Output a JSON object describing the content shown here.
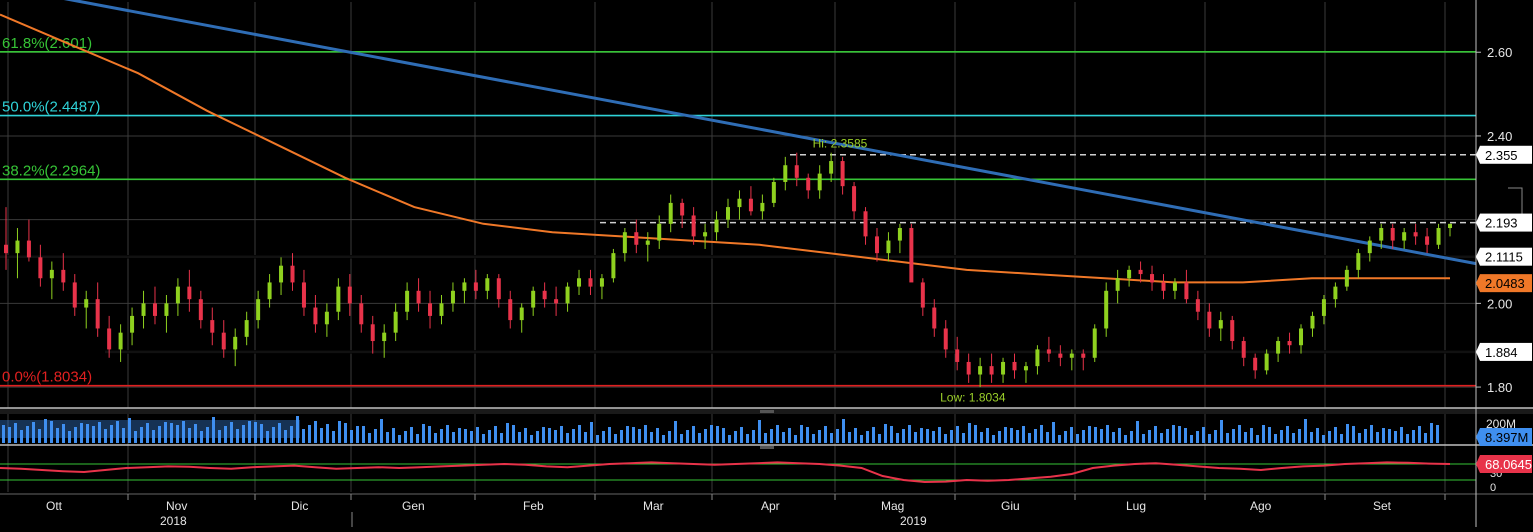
{
  "chart_data": {
    "type": "candlestick",
    "x_axis": {
      "months": [
        "Ott",
        "Nov",
        "Dic",
        "Gen",
        "Feb",
        "Mar",
        "Apr",
        "Mag",
        "Giu",
        "Lug",
        "Ago",
        "Set"
      ],
      "years": [
        "2018",
        "2019"
      ]
    },
    "y_axis": {
      "ticks": [
        "2.60",
        "2.40",
        "2.00",
        "1.80"
      ],
      "ylim": [
        1.75,
        2.72
      ]
    },
    "colors": {
      "bull": "#8fd11f",
      "bear": "#e8334a",
      "ma": "#f07828",
      "trend": "#2f6db5",
      "fib_green": "#36c436",
      "fib_cyan": "#2fd3d8",
      "low_line": "#e02020",
      "grid": "#3a3a3a",
      "volume": "#3f8ff0",
      "rsi": "#e8334a"
    },
    "price": {
      "series": [
        {
          "o": 2.14,
          "h": 2.23,
          "l": 2.08,
          "c": 2.12
        },
        {
          "o": 2.12,
          "h": 2.18,
          "l": 2.06,
          "c": 2.15
        },
        {
          "o": 2.15,
          "h": 2.2,
          "l": 2.1,
          "c": 2.11
        },
        {
          "o": 2.11,
          "h": 2.14,
          "l": 2.04,
          "c": 2.06
        },
        {
          "o": 2.06,
          "h": 2.1,
          "l": 2.01,
          "c": 2.08
        },
        {
          "o": 2.08,
          "h": 2.12,
          "l": 2.03,
          "c": 2.05
        },
        {
          "o": 2.05,
          "h": 2.07,
          "l": 1.97,
          "c": 1.99
        },
        {
          "o": 1.99,
          "h": 2.03,
          "l": 1.94,
          "c": 2.01
        },
        {
          "o": 2.01,
          "h": 2.05,
          "l": 1.92,
          "c": 1.94
        },
        {
          "o": 1.94,
          "h": 1.97,
          "l": 1.87,
          "c": 1.89
        },
        {
          "o": 1.89,
          "h": 1.95,
          "l": 1.86,
          "c": 1.93
        },
        {
          "o": 1.93,
          "h": 1.99,
          "l": 1.9,
          "c": 1.97
        },
        {
          "o": 1.97,
          "h": 2.03,
          "l": 1.94,
          "c": 2.0
        },
        {
          "o": 2.0,
          "h": 2.04,
          "l": 1.95,
          "c": 1.97
        },
        {
          "o": 1.97,
          "h": 2.02,
          "l": 1.93,
          "c": 2.0
        },
        {
          "o": 2.0,
          "h": 2.06,
          "l": 1.97,
          "c": 2.04
        },
        {
          "o": 2.04,
          "h": 2.08,
          "l": 1.98,
          "c": 2.01
        },
        {
          "o": 2.01,
          "h": 2.03,
          "l": 1.94,
          "c": 1.96
        },
        {
          "o": 1.96,
          "h": 1.99,
          "l": 1.9,
          "c": 1.93
        },
        {
          "o": 1.93,
          "h": 1.96,
          "l": 1.87,
          "c": 1.89
        },
        {
          "o": 1.89,
          "h": 1.94,
          "l": 1.85,
          "c": 1.92
        },
        {
          "o": 1.92,
          "h": 1.98,
          "l": 1.9,
          "c": 1.96
        },
        {
          "o": 1.96,
          "h": 2.03,
          "l": 1.94,
          "c": 2.01
        },
        {
          "o": 2.01,
          "h": 2.07,
          "l": 1.99,
          "c": 2.05
        },
        {
          "o": 2.05,
          "h": 2.11,
          "l": 2.02,
          "c": 2.09
        },
        {
          "o": 2.09,
          "h": 2.12,
          "l": 2.03,
          "c": 2.05
        },
        {
          "o": 2.05,
          "h": 2.08,
          "l": 1.97,
          "c": 1.99
        },
        {
          "o": 1.99,
          "h": 2.02,
          "l": 1.93,
          "c": 1.95
        },
        {
          "o": 1.95,
          "h": 2.0,
          "l": 1.92,
          "c": 1.98
        },
        {
          "o": 1.98,
          "h": 2.06,
          "l": 1.96,
          "c": 2.04
        },
        {
          "o": 2.04,
          "h": 2.07,
          "l": 1.97,
          "c": 2.0
        },
        {
          "o": 2.0,
          "h": 2.02,
          "l": 1.93,
          "c": 1.95
        },
        {
          "o": 1.95,
          "h": 1.97,
          "l": 1.88,
          "c": 1.91
        },
        {
          "o": 1.91,
          "h": 1.95,
          "l": 1.87,
          "c": 1.93
        },
        {
          "o": 1.93,
          "h": 2.0,
          "l": 1.91,
          "c": 1.98
        },
        {
          "o": 1.98,
          "h": 2.05,
          "l": 1.96,
          "c": 2.03
        },
        {
          "o": 2.03,
          "h": 2.06,
          "l": 1.98,
          "c": 2.0
        },
        {
          "o": 2.0,
          "h": 2.03,
          "l": 1.94,
          "c": 1.97
        },
        {
          "o": 1.97,
          "h": 2.02,
          "l": 1.95,
          "c": 2.0
        },
        {
          "o": 2.0,
          "h": 2.05,
          "l": 1.98,
          "c": 2.03
        },
        {
          "o": 2.03,
          "h": 2.06,
          "l": 2.0,
          "c": 2.05
        },
        {
          "o": 2.05,
          "h": 2.08,
          "l": 2.01,
          "c": 2.03
        },
        {
          "o": 2.03,
          "h": 2.07,
          "l": 2.01,
          "c": 2.06
        },
        {
          "o": 2.06,
          "h": 2.07,
          "l": 1.99,
          "c": 2.01
        },
        {
          "o": 2.01,
          "h": 2.03,
          "l": 1.94,
          "c": 1.96
        },
        {
          "o": 1.96,
          "h": 2.0,
          "l": 1.93,
          "c": 1.99
        },
        {
          "o": 1.99,
          "h": 2.04,
          "l": 1.97,
          "c": 2.03
        },
        {
          "o": 2.03,
          "h": 2.05,
          "l": 1.99,
          "c": 2.01
        },
        {
          "o": 2.01,
          "h": 2.04,
          "l": 1.97,
          "c": 2.0
        },
        {
          "o": 2.0,
          "h": 2.05,
          "l": 1.98,
          "c": 2.04
        },
        {
          "o": 2.04,
          "h": 2.08,
          "l": 2.02,
          "c": 2.06
        },
        {
          "o": 2.06,
          "h": 2.08,
          "l": 2.02,
          "c": 2.04
        },
        {
          "o": 2.04,
          "h": 2.07,
          "l": 2.01,
          "c": 2.06
        },
        {
          "o": 2.06,
          "h": 2.13,
          "l": 2.05,
          "c": 2.12
        },
        {
          "o": 2.12,
          "h": 2.18,
          "l": 2.1,
          "c": 2.17
        },
        {
          "o": 2.17,
          "h": 2.2,
          "l": 2.12,
          "c": 2.14
        },
        {
          "o": 2.14,
          "h": 2.17,
          "l": 2.1,
          "c": 2.15
        },
        {
          "o": 2.15,
          "h": 2.21,
          "l": 2.13,
          "c": 2.19
        },
        {
          "o": 2.19,
          "h": 2.26,
          "l": 2.17,
          "c": 2.24
        },
        {
          "o": 2.24,
          "h": 2.25,
          "l": 2.18,
          "c": 2.21
        },
        {
          "o": 2.21,
          "h": 2.23,
          "l": 2.14,
          "c": 2.16
        },
        {
          "o": 2.16,
          "h": 2.19,
          "l": 2.13,
          "c": 2.17
        },
        {
          "o": 2.17,
          "h": 2.22,
          "l": 2.15,
          "c": 2.2
        },
        {
          "o": 2.2,
          "h": 2.25,
          "l": 2.18,
          "c": 2.23
        },
        {
          "o": 2.23,
          "h": 2.27,
          "l": 2.2,
          "c": 2.25
        },
        {
          "o": 2.25,
          "h": 2.28,
          "l": 2.21,
          "c": 2.22
        },
        {
          "o": 2.22,
          "h": 2.26,
          "l": 2.2,
          "c": 2.24
        },
        {
          "o": 2.24,
          "h": 2.3,
          "l": 2.23,
          "c": 2.29
        },
        {
          "o": 2.29,
          "h": 2.35,
          "l": 2.27,
          "c": 2.33
        },
        {
          "o": 2.33,
          "h": 2.36,
          "l": 2.28,
          "c": 2.3
        },
        {
          "o": 2.3,
          "h": 2.31,
          "l": 2.25,
          "c": 2.27
        },
        {
          "o": 2.27,
          "h": 2.33,
          "l": 2.25,
          "c": 2.31
        },
        {
          "o": 2.31,
          "h": 2.36,
          "l": 2.29,
          "c": 2.34
        },
        {
          "o": 2.34,
          "h": 2.35,
          "l": 2.26,
          "c": 2.28
        },
        {
          "o": 2.28,
          "h": 2.29,
          "l": 2.2,
          "c": 2.22
        },
        {
          "o": 2.22,
          "h": 2.23,
          "l": 2.14,
          "c": 2.16
        },
        {
          "o": 2.16,
          "h": 2.18,
          "l": 2.1,
          "c": 2.12
        },
        {
          "o": 2.12,
          "h": 2.17,
          "l": 2.1,
          "c": 2.15
        },
        {
          "o": 2.15,
          "h": 2.19,
          "l": 2.12,
          "c": 2.18
        },
        {
          "o": 2.18,
          "h": 2.19,
          "l": 2.08,
          "c": 2.05
        },
        {
          "o": 2.05,
          "h": 2.06,
          "l": 1.97,
          "c": 1.99
        },
        {
          "o": 1.99,
          "h": 2.01,
          "l": 1.92,
          "c": 1.94
        },
        {
          "o": 1.94,
          "h": 1.96,
          "l": 1.87,
          "c": 1.89
        },
        {
          "o": 1.89,
          "h": 1.92,
          "l": 1.84,
          "c": 1.86
        },
        {
          "o": 1.86,
          "h": 1.88,
          "l": 1.81,
          "c": 1.83
        },
        {
          "o": 1.83,
          "h": 1.87,
          "l": 1.8,
          "c": 1.85
        },
        {
          "o": 1.85,
          "h": 1.88,
          "l": 1.81,
          "c": 1.83
        },
        {
          "o": 1.83,
          "h": 1.87,
          "l": 1.81,
          "c": 1.86
        },
        {
          "o": 1.86,
          "h": 1.88,
          "l": 1.82,
          "c": 1.84
        },
        {
          "o": 1.84,
          "h": 1.86,
          "l": 1.81,
          "c": 1.85
        },
        {
          "o": 1.85,
          "h": 1.9,
          "l": 1.83,
          "c": 1.89
        },
        {
          "o": 1.89,
          "h": 1.92,
          "l": 1.86,
          "c": 1.88
        },
        {
          "o": 1.88,
          "h": 1.9,
          "l": 1.85,
          "c": 1.87
        },
        {
          "o": 1.87,
          "h": 1.89,
          "l": 1.84,
          "c": 1.88
        },
        {
          "o": 1.88,
          "h": 1.89,
          "l": 1.84,
          "c": 1.87
        },
        {
          "o": 1.87,
          "h": 1.95,
          "l": 1.86,
          "c": 1.94
        },
        {
          "o": 1.94,
          "h": 2.05,
          "l": 1.92,
          "c": 2.03
        },
        {
          "o": 2.03,
          "h": 2.08,
          "l": 2.0,
          "c": 2.06
        },
        {
          "o": 2.06,
          "h": 2.09,
          "l": 2.04,
          "c": 2.08
        },
        {
          "o": 2.08,
          "h": 2.1,
          "l": 2.05,
          "c": 2.07
        },
        {
          "o": 2.07,
          "h": 2.09,
          "l": 2.03,
          "c": 2.05
        },
        {
          "o": 2.05,
          "h": 2.07,
          "l": 2.01,
          "c": 2.03
        },
        {
          "o": 2.03,
          "h": 2.06,
          "l": 2.01,
          "c": 2.05
        },
        {
          "o": 2.05,
          "h": 2.08,
          "l": 2.0,
          "c": 2.01
        },
        {
          "o": 2.01,
          "h": 2.03,
          "l": 1.96,
          "c": 1.98
        },
        {
          "o": 1.98,
          "h": 2.0,
          "l": 1.92,
          "c": 1.94
        },
        {
          "o": 1.94,
          "h": 1.98,
          "l": 1.91,
          "c": 1.96
        },
        {
          "o": 1.96,
          "h": 1.97,
          "l": 1.89,
          "c": 1.91
        },
        {
          "o": 1.91,
          "h": 1.92,
          "l": 1.85,
          "c": 1.87
        },
        {
          "o": 1.87,
          "h": 1.88,
          "l": 1.82,
          "c": 1.84
        },
        {
          "o": 1.84,
          "h": 1.89,
          "l": 1.83,
          "c": 1.88
        },
        {
          "o": 1.88,
          "h": 1.92,
          "l": 1.86,
          "c": 1.91
        },
        {
          "o": 1.91,
          "h": 1.93,
          "l": 1.88,
          "c": 1.9
        },
        {
          "o": 1.9,
          "h": 1.95,
          "l": 1.88,
          "c": 1.94
        },
        {
          "o": 1.94,
          "h": 1.98,
          "l": 1.92,
          "c": 1.97
        },
        {
          "o": 1.97,
          "h": 2.02,
          "l": 1.95,
          "c": 2.01
        },
        {
          "o": 2.01,
          "h": 2.05,
          "l": 1.99,
          "c": 2.04
        },
        {
          "o": 2.04,
          "h": 2.09,
          "l": 2.03,
          "c": 2.08
        },
        {
          "o": 2.08,
          "h": 2.13,
          "l": 2.06,
          "c": 2.12
        },
        {
          "o": 2.12,
          "h": 2.16,
          "l": 2.1,
          "c": 2.15
        },
        {
          "o": 2.15,
          "h": 2.19,
          "l": 2.13,
          "c": 2.18
        },
        {
          "o": 2.18,
          "h": 2.19,
          "l": 2.13,
          "c": 2.15
        },
        {
          "o": 2.15,
          "h": 2.18,
          "l": 2.13,
          "c": 2.17
        },
        {
          "o": 2.17,
          "h": 2.19,
          "l": 2.14,
          "c": 2.16
        },
        {
          "o": 2.16,
          "h": 2.18,
          "l": 2.12,
          "c": 2.14
        },
        {
          "o": 2.14,
          "h": 2.19,
          "l": 2.13,
          "c": 2.18
        },
        {
          "o": 2.18,
          "h": 2.19,
          "l": 2.16,
          "c": 2.19
        }
      ],
      "moving_average_200": [
        2.69,
        2.62,
        2.55,
        2.46,
        2.38,
        2.3,
        2.23,
        2.19,
        2.17,
        2.16,
        2.15,
        2.14,
        2.12,
        2.1,
        2.08,
        2.07,
        2.06,
        2.05,
        2.05,
        2.06,
        2.06,
        2.06
      ],
      "trendline": [
        {
          "x": 0,
          "y": 2.757
        },
        {
          "x": 1,
          "y": 2.095
        }
      ],
      "horizontal_levels": [
        {
          "value": 2.601,
          "label": "61.8%(2.601)",
          "kind": "fib"
        },
        {
          "value": 2.4487,
          "label": "50.0%(2.4487)",
          "kind": "fib_cyan"
        },
        {
          "value": 2.2964,
          "label": "38.2%(2.2964)",
          "kind": "fib"
        },
        {
          "value": 2.1115,
          "label": "",
          "kind": "support"
        },
        {
          "value": 1.884,
          "label": "",
          "kind": "support_partial"
        },
        {
          "value": 1.8034,
          "label": "0.0%(1.8034)",
          "kind": "low"
        },
        {
          "value": 2.355,
          "label": "",
          "kind": "dashed_high"
        },
        {
          "value": 2.193,
          "label": "",
          "kind": "dashed_recent"
        }
      ],
      "annotations": {
        "high": {
          "text": "Hi: 2.3585",
          "value": 2.3585,
          "index": 73
        },
        "low": {
          "text": "Low: 1.8034",
          "value": 1.8034,
          "index": 85
        }
      },
      "tags": [
        {
          "text": "2.355",
          "value": 2.355,
          "style": "white"
        },
        {
          "text": "2.193",
          "value": 2.193,
          "style": "white"
        },
        {
          "text": "2.1115",
          "value": 2.1115,
          "style": "white"
        },
        {
          "text": "2.0483",
          "value": 2.0483,
          "style": "orange"
        },
        {
          "text": "1.884",
          "value": 1.884,
          "style": "white"
        }
      ]
    },
    "volume": {
      "ticks": [
        "200M"
      ],
      "last_label": "8.397M",
      "ymax": 240
    },
    "rsi": {
      "ticks": [
        "30",
        "0"
      ],
      "last_label": "68.0645",
      "range": [
        0,
        100
      ],
      "levels": [
        30,
        70
      ],
      "series": [
        60,
        58,
        55,
        52,
        50,
        55,
        60,
        62,
        64,
        63,
        60,
        58,
        62,
        64,
        66,
        62,
        58,
        60,
        62,
        60,
        62,
        64,
        66,
        68,
        70,
        68,
        64,
        62,
        66,
        70,
        72,
        74,
        72,
        70,
        68,
        70,
        72,
        74,
        72,
        70,
        66,
        60,
        40,
        30,
        25,
        26,
        30,
        28,
        30,
        34,
        38,
        45,
        60,
        66,
        70,
        72,
        68,
        64,
        60,
        58,
        55,
        60,
        64,
        66,
        70,
        72,
        74,
        73,
        71,
        70
      ]
    }
  }
}
